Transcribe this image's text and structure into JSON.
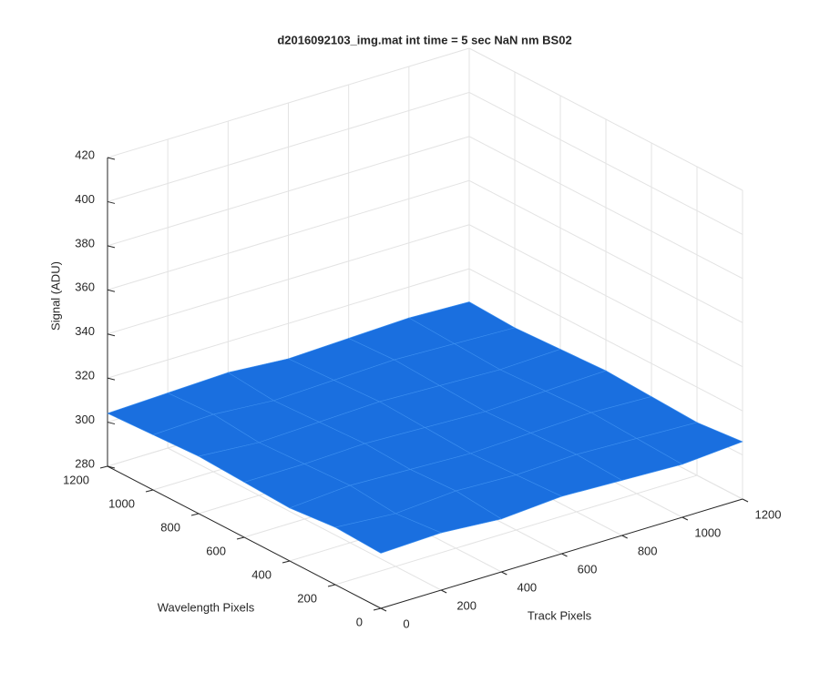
{
  "chart_data": {
    "type": "surface",
    "title": "d2016092103_img.mat int time = 5 sec  NaN nm BS02",
    "x_label": "Track Pixels",
    "y_label": "Wavelength Pixels",
    "z_label": "Signal (ADU)",
    "x": [
      0,
      200,
      400,
      600,
      800,
      1000,
      1200
    ],
    "y": [
      0,
      200,
      400,
      600,
      800,
      1000,
      1200
    ],
    "z": [
      [
        305,
        306,
        304,
        306,
        305,
        304,
        306
      ],
      [
        306,
        304,
        306,
        305,
        306,
        305,
        304
      ],
      [
        304,
        306,
        305,
        304,
        305,
        306,
        305
      ],
      [
        305,
        305,
        306,
        305,
        304,
        305,
        306
      ],
      [
        306,
        304,
        305,
        306,
        305,
        304,
        305
      ],
      [
        305,
        306,
        304,
        305,
        306,
        305,
        304
      ],
      [
        304,
        305,
        306,
        304,
        305,
        306,
        305
      ]
    ],
    "color": "#1a6fdf",
    "xlim": [
      0,
      1200
    ],
    "ylim": [
      0,
      1200
    ],
    "zlim": [
      280,
      420
    ],
    "xticks": [
      0,
      200,
      400,
      600,
      800,
      1000,
      1200
    ],
    "yticks": [
      0,
      200,
      400,
      600,
      800,
      1000,
      1200
    ],
    "zticks": [
      280,
      300,
      320,
      340,
      360,
      380,
      400,
      420
    ],
    "grid": true
  }
}
